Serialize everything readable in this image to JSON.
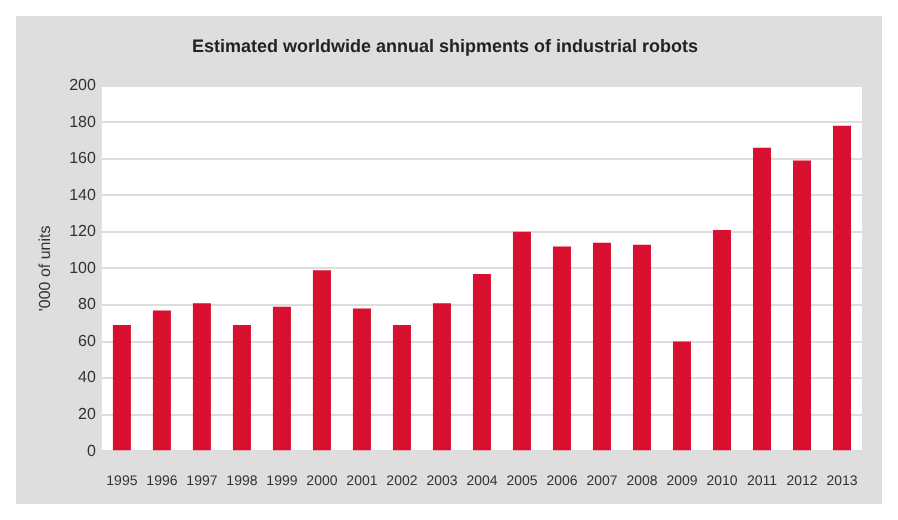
{
  "chart_data": {
    "type": "bar",
    "title": "Estimated worldwide annual shipments of industrial robots",
    "ylabel": "'000 of units",
    "categories": [
      "1995",
      "1996",
      "1997",
      "1998",
      "1999",
      "2000",
      "2001",
      "2002",
      "2003",
      "2004",
      "2005",
      "2006",
      "2007",
      "2008",
      "2009",
      "2010",
      "2011",
      "2012",
      "2013"
    ],
    "values": [
      69,
      77,
      81,
      69,
      79,
      99,
      78,
      69,
      81,
      97,
      120,
      112,
      114,
      113,
      60,
      121,
      166,
      159,
      178
    ],
    "color": "#d80f2e",
    "ylim": [
      0,
      200
    ],
    "yticks": [
      0,
      20,
      40,
      60,
      80,
      100,
      120,
      140,
      160,
      180,
      200
    ],
    "grid": "y"
  }
}
